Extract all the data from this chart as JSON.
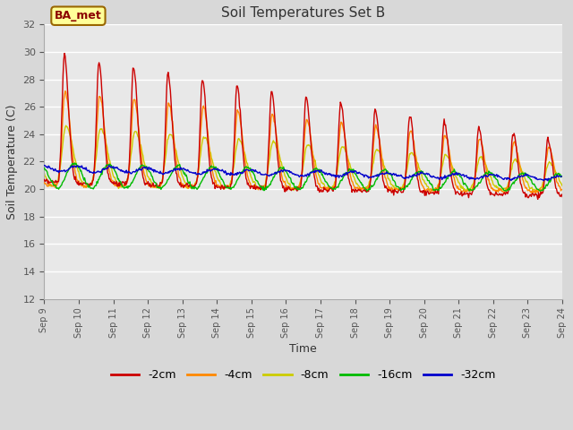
{
  "title": "Soil Temperatures Set B",
  "xlabel": "Time",
  "ylabel": "Soil Temperature (C)",
  "ylim": [
    12,
    32
  ],
  "xlim": [
    0,
    15
  ],
  "annotation": "BA_met",
  "fig_bg_color": "#d8d8d8",
  "plot_bg_color": "#e8e8e8",
  "grid_color": "#ffffff",
  "series_colors": {
    "-2cm": "#cc0000",
    "-4cm": "#ff8800",
    "-8cm": "#cccc00",
    "-16cm": "#00bb00",
    "-32cm": "#0000cc"
  },
  "x_tick_labels": [
    "Sep 9",
    "Sep 10",
    "Sep 11",
    "Sep 12",
    "Sep 13",
    "Sep 14",
    "Sep 15",
    "Sep 16",
    "Sep 17",
    "Sep 18",
    "Sep 19",
    "Sep 20",
    "Sep 21",
    "Sep 22",
    "Sep 23",
    "Sep 24"
  ],
  "legend_labels": [
    "-2cm",
    "-4cm",
    "-8cm",
    "-16cm",
    "-32cm"
  ],
  "figsize": [
    6.4,
    4.8
  ],
  "dpi": 100
}
